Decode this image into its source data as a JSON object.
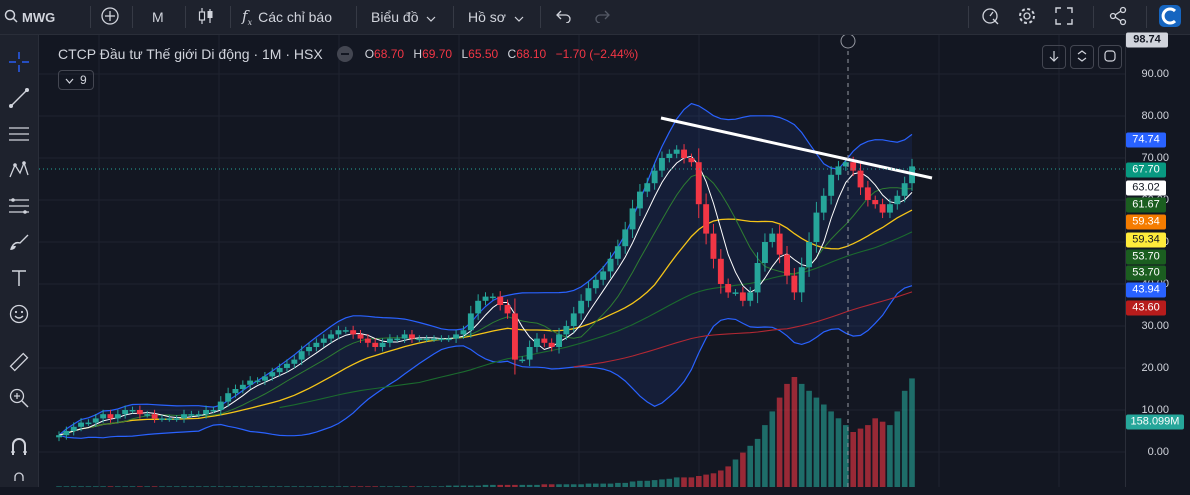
{
  "toolbar": {
    "symbol": "MWG",
    "interval": "M",
    "indicators_label": "Các chỉ báo",
    "chart_label": "Biểu đồ",
    "profile_label": "Hồ sơ"
  },
  "legend": {
    "name": "CTCP Đầu tư Thế giới Di động · 1M · HSX",
    "o_key": "O",
    "o": "68.70",
    "h_key": "H",
    "h": "69.70",
    "l_key": "L",
    "l": "65.50",
    "c_key": "C",
    "c": "68.10",
    "change": "−1.70 (−2.44%)",
    "indicator_count": "9"
  },
  "axis": {
    "top_label": "98.74",
    "ticks": [
      "90.00",
      "80.00",
      "70.00",
      "60.00",
      "50.00",
      "40.00",
      "30.00",
      "20.00",
      "10.00",
      "0.00"
    ]
  },
  "price_labels": [
    {
      "text": "74.74",
      "bg": "#2962ff",
      "fg": "#ffffff"
    },
    {
      "text": "67.70",
      "bg": "#089981",
      "fg": "#ffffff"
    },
    {
      "text": "63.02",
      "bg": "#ffffff",
      "fg": "#131722"
    },
    {
      "text": "61.67",
      "bg": "#1b5e20",
      "fg": "#ffffff"
    },
    {
      "text": "59.34",
      "bg": "#f57c00",
      "fg": "#ffffff"
    },
    {
      "text": "59.34",
      "bg": "#ffeb3b",
      "fg": "#131722"
    },
    {
      "text": "53.70",
      "bg": "#1b5e20",
      "fg": "#ffffff"
    },
    {
      "text": "53.70",
      "bg": "#1b5e20",
      "fg": "#ffffff"
    },
    {
      "text": "43.94",
      "bg": "#2962ff",
      "fg": "#ffffff"
    },
    {
      "text": "43.60",
      "bg": "#b71c1c",
      "fg": "#ffffff"
    },
    {
      "text": "158.099M",
      "bg": "#26a69a",
      "fg": "#ffffff"
    }
  ],
  "colors": {
    "up": "#26a69a",
    "down": "#f23645",
    "background": "#131722"
  },
  "chart_data": {
    "type": "candlestick",
    "interval": "1M",
    "ylim": [
      0,
      98.74
    ],
    "close": [
      4,
      5,
      6,
      7,
      7,
      8,
      9,
      8,
      9,
      10,
      10,
      9,
      9,
      8,
      8,
      8,
      8,
      9,
      9,
      9,
      10,
      10,
      12,
      14,
      15,
      16,
      17,
      17,
      18,
      19,
      20,
      21,
      22,
      24,
      25,
      26,
      27,
      28,
      29,
      29,
      28,
      27,
      26,
      25,
      26,
      27,
      27,
      28,
      27,
      27,
      27,
      27,
      27,
      27,
      28,
      29,
      33,
      36,
      37,
      37,
      35,
      33,
      22,
      22,
      25,
      27,
      26,
      25,
      28,
      30,
      33,
      36,
      39,
      41,
      43,
      46,
      49,
      53,
      58,
      62,
      64,
      67,
      70,
      71,
      72,
      70,
      69,
      59,
      52,
      46,
      40,
      38,
      38,
      36,
      38,
      45,
      50,
      52,
      47,
      42,
      38,
      44,
      50,
      57,
      61,
      66,
      68,
      69,
      67,
      63,
      60,
      59,
      57,
      59,
      61,
      64,
      68
    ],
    "volume": [
      1,
      1,
      1,
      1,
      1,
      1,
      1,
      1,
      1,
      1,
      1,
      1,
      1,
      1,
      1,
      1,
      1,
      1,
      1,
      1,
      1,
      1,
      1,
      1,
      1,
      1,
      1,
      1,
      1,
      1,
      1,
      1,
      1,
      1,
      1,
      1,
      1,
      1,
      1,
      1,
      1,
      1,
      1,
      1,
      1,
      1,
      1,
      1,
      1,
      1,
      1,
      1,
      1,
      2,
      2,
      2,
      2,
      2,
      3,
      3,
      3,
      3,
      3,
      3,
      3,
      3,
      4,
      4,
      4,
      4,
      4,
      4,
      5,
      5,
      5,
      5,
      6,
      6,
      8,
      9,
      9,
      10,
      11,
      12,
      14,
      14,
      14,
      16,
      18,
      20,
      24,
      30,
      40,
      50,
      60,
      70,
      90,
      110,
      130,
      150,
      160,
      150,
      140,
      130,
      120,
      110,
      100,
      90,
      80,
      85,
      90,
      100,
      95,
      90,
      110,
      140,
      158
    ]
  }
}
